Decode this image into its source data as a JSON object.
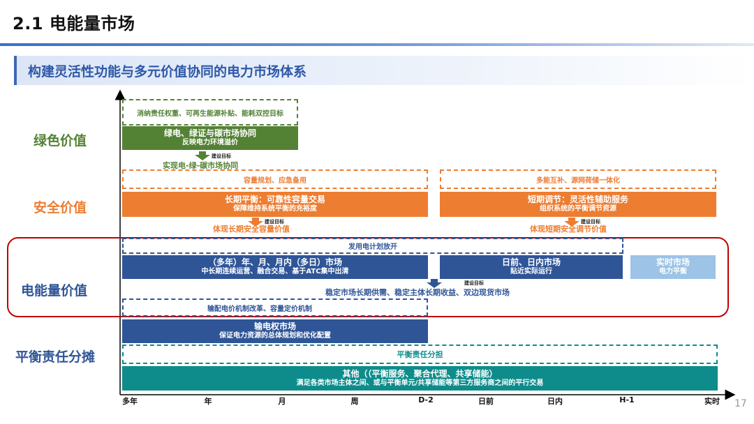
{
  "header": {
    "title": "2.1 电能量市场",
    "subtitle": "构建灵活性功能与多元价值协同的电力市场体系",
    "page_number": "17"
  },
  "colors": {
    "green": "#548235",
    "orange": "#ed7d31",
    "blue": "#2f5597",
    "light_blue": "#9dc3e6",
    "teal": "#0e8c8c",
    "highlight_red": "#c00000"
  },
  "rows": {
    "green": {
      "label": "绿色价值",
      "dashed_text": "消纳责任权重、可再生能源补贴、能耗双控目标",
      "box_line1": "绿电、绿证与碳市场协同",
      "box_line2": "反映电力环境溢价",
      "arrow_tag": "建设目标",
      "goal": "实现电-绿-碳市场协同"
    },
    "security": {
      "label": "安全价值",
      "dashed_left": "容量规划、应急备用",
      "dashed_right": "多能互补、源网荷储一体化",
      "box_left_line1": "长期平衡：可靠性容量交易",
      "box_left_line2": "保障维持系统平衡的充裕度",
      "box_right_line1": "短期调节：灵活性辅助服务",
      "box_right_line2": "组织系统的平衡调节资源",
      "arrow_tag_left": "建设目标",
      "arrow_tag_right": "建设目标",
      "goal_left": "体现长期安全容量价值",
      "goal_right": "体现短期安全调节价值"
    },
    "energy": {
      "label": "电能量价值",
      "dashed_top": "发用电计划放开",
      "box_left_line1": "（多年）年、月、月内（多日）市场",
      "box_left_line2": "中长期连续运营、融合交易、基于ATC集中出清",
      "box_mid_line1": "日前、日内市场",
      "box_mid_line2": "贴近实际运行",
      "box_right_line1": "实时市场",
      "box_right_line2": "电力平衡",
      "arrow_tag": "建设目标",
      "goal": "稳定市场长期供需、稳定主体长期收益、双边现货市场",
      "dashed_bottom": "输配电价机制改革、容量定价机制",
      "transmission_line1": "输电权市场",
      "transmission_line2": "保证电力资源的总体规划和优化配置"
    },
    "balance": {
      "label": "平衡责任分摊",
      "dashed_text": "平衡责任分担",
      "box_line1": "其他（（平衡服务、聚合代理、共享储能）",
      "box_line2": "满足各类市场主体之间、或与平衡单元/共享储能等第三方服务商之间的平行交易"
    }
  },
  "axis": {
    "ticks": [
      "多年",
      "年",
      "月",
      "周",
      "D-2",
      "日前",
      "日内",
      "H-1",
      "实时"
    ]
  }
}
